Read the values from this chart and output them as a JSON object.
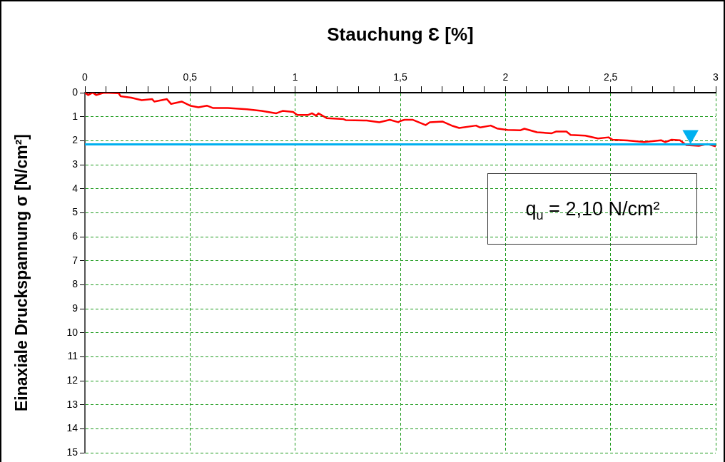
{
  "chart_data": {
    "type": "line",
    "xlabel": "Stauchung Ɛ [%]",
    "ylabel": "Einaxiale Druckspannung σ [N/cm²]",
    "xlim": [
      0,
      3
    ],
    "xticks": [
      {
        "value": 0,
        "label": "0"
      },
      {
        "value": 0.1,
        "label": null
      },
      {
        "value": 0.2,
        "label": null
      },
      {
        "value": 0.3,
        "label": null
      },
      {
        "value": 0.4,
        "label": null
      },
      {
        "value": 0.5,
        "label": "0,5"
      },
      {
        "value": 0.6,
        "label": null
      },
      {
        "value": 0.7,
        "label": null
      },
      {
        "value": 0.8,
        "label": null
      },
      {
        "value": 0.9,
        "label": null
      },
      {
        "value": 1,
        "label": "1"
      },
      {
        "value": 1.1,
        "label": null
      },
      {
        "value": 1.2,
        "label": null
      },
      {
        "value": 1.3,
        "label": null
      },
      {
        "value": 1.4,
        "label": null
      },
      {
        "value": 1.5,
        "label": "1,5"
      },
      {
        "value": 1.6,
        "label": null
      },
      {
        "value": 1.7,
        "label": null
      },
      {
        "value": 1.8,
        "label": null
      },
      {
        "value": 1.9,
        "label": null
      },
      {
        "value": 2,
        "label": "2"
      },
      {
        "value": 2.1,
        "label": null
      },
      {
        "value": 2.2,
        "label": null
      },
      {
        "value": 2.3,
        "label": null
      },
      {
        "value": 2.4,
        "label": null
      },
      {
        "value": 2.5,
        "label": "2,5"
      },
      {
        "value": 2.6,
        "label": null
      },
      {
        "value": 2.7,
        "label": null
      },
      {
        "value": 2.8,
        "label": null
      },
      {
        "value": 2.9,
        "label": null
      },
      {
        "value": 3,
        "label": "3"
      }
    ],
    "ylim": [
      15,
      0
    ],
    "yticks": [
      0,
      1,
      2,
      3,
      4,
      5,
      6,
      7,
      8,
      9,
      10,
      11,
      12,
      13,
      14,
      15
    ],
    "grid": true,
    "legend": false,
    "line_style": "solid",
    "series": [
      {
        "color": "#ff0000",
        "marker": "none",
        "x": [
          0,
          0.015,
          0.037,
          0.054,
          0.09,
          0.16,
          0.17,
          0.22,
          0.27,
          0.32,
          0.33,
          0.39,
          0.41,
          0.46,
          0.5,
          0.54,
          0.58,
          0.61,
          0.68,
          0.77,
          0.84,
          0.91,
          0.94,
          0.99,
          1.01,
          1.06,
          1.08,
          1.1,
          1.11,
          1.15,
          1.23,
          1.24,
          1.34,
          1.4,
          1.45,
          1.49,
          1.5,
          1.52,
          1.56,
          1.62,
          1.64,
          1.7,
          1.75,
          1.78,
          1.86,
          1.88,
          1.93,
          1.96,
          2.01,
          2.07,
          2.09,
          2.15,
          2.22,
          2.24,
          2.29,
          2.31,
          2.38,
          2.44,
          2.49,
          2.51,
          2.58,
          2.66,
          2.74,
          2.76,
          2.79,
          2.83,
          2.86,
          2.92,
          2.96,
          3
        ],
        "values": [
          0,
          0.1,
          0,
          0.1,
          0,
          0.02,
          0.15,
          0.21,
          0.31,
          0.27,
          0.37,
          0.27,
          0.47,
          0.37,
          0.54,
          0.61,
          0.54,
          0.64,
          0.64,
          0.69,
          0.76,
          0.86,
          0.76,
          0.8,
          0.93,
          0.93,
          0.86,
          0.96,
          0.86,
          1.06,
          1.1,
          1.14,
          1.16,
          1.23,
          1.13,
          1.23,
          1.18,
          1.13,
          1.13,
          1.35,
          1.23,
          1.2,
          1.39,
          1.47,
          1.37,
          1.45,
          1.37,
          1.49,
          1.55,
          1.57,
          1.5,
          1.65,
          1.69,
          1.62,
          1.62,
          1.76,
          1.79,
          1.91,
          1.86,
          1.96,
          1.99,
          2.06,
          1.98,
          2.06,
          1.96,
          1.98,
          2.18,
          2.21,
          2.14,
          2.24
        ]
      },
      {
        "type": "scatter",
        "color": "#00b0f0",
        "marker": "triangle",
        "x": [
          2.88
        ],
        "values": [
          1.75
        ]
      }
    ],
    "ref_lines": [
      {
        "axis": "y",
        "value": 2.15,
        "color": "#00b0f0",
        "line_style": "solid"
      }
    ],
    "annotations": [
      "q$_{u}$ = 2,10 N/cm²"
    ]
  }
}
